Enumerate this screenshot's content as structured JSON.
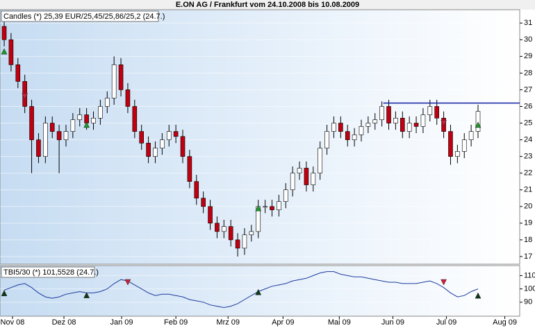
{
  "chart_data": [
    {
      "type": "candlestick",
      "title": "E.ON AG / Frankfurt vom 24.10.2008 bis 10.08.2009",
      "legend": "Candles (*) 25,39 EUR/25,45/25,86/25,2 (24.7.)",
      "open": [
        30.8,
        30,
        28.5,
        27.5,
        26,
        24,
        23,
        25,
        24.5,
        24,
        24.5,
        25.2,
        25.5,
        25,
        25.3,
        26,
        26.5,
        28.5,
        27,
        26,
        24.5,
        23.8,
        23,
        23.5,
        24,
        24.5,
        24.2,
        23,
        21.5,
        20.5,
        20,
        19,
        18.5,
        18.8,
        18,
        17.5,
        18.3,
        18.5,
        20,
        20,
        19.8,
        20.3,
        21,
        22,
        22.3,
        21.3,
        22,
        23.5,
        24.5,
        25,
        24.5,
        24,
        24.3,
        24.8,
        25,
        25.2,
        26,
        25,
        25.3,
        24.5,
        25,
        24.8,
        25.5,
        26,
        25.3,
        24.5,
        23,
        23.3,
        24,
        24.5
      ],
      "high": [
        31.3,
        30.4,
        28.9,
        27.9,
        26.4,
        24.4,
        25.4,
        25.4,
        24.9,
        24.9,
        25.6,
        25.9,
        25.9,
        25.7,
        26.4,
        26.9,
        29,
        28.9,
        27.4,
        26.4,
        24.9,
        24.2,
        23.9,
        24.4,
        24.9,
        24.9,
        24.6,
        23.4,
        21.9,
        20.9,
        20.4,
        19.4,
        19.2,
        19.2,
        18.4,
        18.7,
        18.9,
        20.4,
        20.4,
        20.4,
        20.7,
        21.4,
        22.4,
        22.7,
        22.7,
        22.4,
        23.9,
        24.9,
        25.4,
        25.4,
        24.9,
        24.7,
        25.2,
        25.4,
        25.6,
        26.3,
        26.4,
        25.7,
        25.7,
        25.4,
        25.4,
        25.9,
        26.4,
        26.4,
        25.7,
        24.9,
        23.7,
        24.4,
        24.9,
        26.1
      ],
      "low": [
        29.6,
        28.1,
        27.1,
        25.6,
        22,
        22.6,
        22.6,
        24.1,
        22,
        23.6,
        24.1,
        24.8,
        24.6,
        24.6,
        24.9,
        25.6,
        26.1,
        26.6,
        25.6,
        24.1,
        23.4,
        22.6,
        22.6,
        23.1,
        23.6,
        23.8,
        22.6,
        21.1,
        20.1,
        19.6,
        18.6,
        18.1,
        18.1,
        17.6,
        17,
        17.1,
        17.9,
        18.1,
        19.6,
        19.4,
        19.4,
        19.9,
        20.6,
        21.6,
        20.9,
        20.9,
        21.6,
        23.1,
        24.1,
        24.1,
        23.6,
        23.6,
        23.9,
        24.4,
        24.6,
        24.8,
        24.6,
        24.6,
        24.1,
        24.1,
        24.4,
        24.4,
        25.1,
        24.9,
        24.1,
        22.5,
        22.6,
        22.9,
        23.6,
        24.1
      ],
      "close": [
        30,
        28.5,
        27.5,
        26,
        24,
        23,
        25,
        24.5,
        24,
        24.5,
        25.2,
        25.5,
        25,
        25.3,
        26,
        26.5,
        28.5,
        27,
        26,
        24.5,
        23.8,
        23,
        23.5,
        24,
        24.5,
        24.2,
        23,
        21.5,
        20.5,
        20,
        19,
        18.5,
        18.8,
        18,
        17.5,
        18.3,
        18.5,
        20,
        20,
        19.8,
        20.3,
        21,
        22,
        22.3,
        21.3,
        22,
        23.5,
        24.5,
        25,
        24.5,
        24,
        24.3,
        24.8,
        25,
        25.2,
        26,
        25,
        25.3,
        24.5,
        25,
        24.8,
        25.5,
        26,
        25.3,
        24.5,
        23,
        23.3,
        24,
        24.5,
        25.7
      ],
      "up_color": "#ffffff",
      "down_color": "#c00010",
      "hline": {
        "value": 26.2,
        "x_start": 55.2,
        "color": "#0a1aa0"
      },
      "markers": [
        {
          "x": 0,
          "y": 29.3,
          "color": "#1e9a2a",
          "direction": "up"
        },
        {
          "x": 3,
          "y": 26.6,
          "color": "#d0203a",
          "direction": "down"
        },
        {
          "x": 12,
          "y": 24.9,
          "color": "#1e9a2a",
          "direction": "up"
        },
        {
          "x": 37,
          "y": 19.9,
          "color": "#1e9a2a",
          "direction": "up"
        },
        {
          "x": 64,
          "y": 25,
          "color": "#d0203a",
          "direction": "down"
        },
        {
          "x": 69,
          "y": 24.9,
          "color": "#1e9a2a",
          "direction": "up"
        }
      ],
      "xlim": [
        -0.61,
        75.07
      ],
      "ylim": [
        16.54,
        31.8
      ],
      "yticks": [
        17,
        18,
        19,
        20,
        21,
        22,
        23,
        24,
        25,
        26,
        27,
        28,
        29,
        30,
        31
      ],
      "grid": true
    },
    {
      "type": "line",
      "legend": "TBI5/30 (*) 101,5528 (24.7.)",
      "values": [
        99,
        101,
        103,
        104,
        101,
        97,
        94,
        93,
        94,
        96,
        97,
        98,
        97,
        97,
        98,
        100,
        104,
        107,
        106,
        103,
        100,
        97,
        95,
        96,
        96,
        95,
        94,
        92,
        91,
        90,
        88,
        87,
        86,
        87,
        89,
        92,
        95,
        98,
        100,
        102,
        103,
        104,
        106,
        107,
        108,
        110,
        112,
        113,
        113,
        111,
        110,
        109,
        109,
        108,
        107,
        106,
        105,
        105,
        104,
        104,
        104,
        105,
        106,
        104,
        101,
        97,
        94,
        95,
        98,
        100
      ],
      "color": "#1c3a9e",
      "markers": [
        {
          "x": 0,
          "y": 96.8,
          "color": "#0d3a1a",
          "direction": "up"
        },
        {
          "x": 12,
          "y": 95.3,
          "color": "#0d3a1a",
          "direction": "up"
        },
        {
          "x": 18,
          "y": 105,
          "color": "#d0203a",
          "direction": "down"
        },
        {
          "x": 37,
          "y": 97.6,
          "color": "#0d3a1a",
          "direction": "up"
        },
        {
          "x": 64,
          "y": 105,
          "color": "#d0203a",
          "direction": "down"
        },
        {
          "x": 69,
          "y": 95,
          "color": "#0d3a1a",
          "direction": "up"
        }
      ],
      "xlim": [
        -0.61,
        75.07
      ],
      "ylim": [
        79.5,
        117.5
      ],
      "yticks": [
        90,
        100,
        110
      ],
      "xticks": [
        {
          "value": 1.21,
          "label": "Nov 08"
        },
        {
          "value": 8.7,
          "label": "Dez 08"
        },
        {
          "value": 17.1,
          "label": "Jan 09"
        },
        {
          "value": 25.0,
          "label": "Feb 09"
        },
        {
          "value": 32.6,
          "label": "Mrz 09"
        },
        {
          "value": 40.6,
          "label": "Apr 09"
        },
        {
          "value": 48.8,
          "label": "Mai 09"
        },
        {
          "value": 56.6,
          "label": "Jun 09"
        },
        {
          "value": 64.4,
          "label": "Jul 09"
        },
        {
          "value": 72.9,
          "label": "Aug 09"
        }
      ],
      "grid": true
    }
  ]
}
